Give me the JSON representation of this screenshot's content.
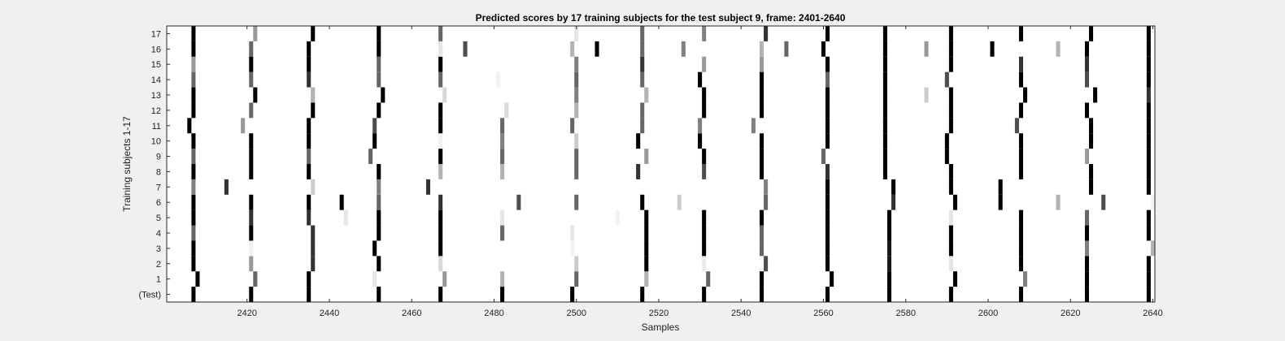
{
  "chart_data": {
    "type": "heatmap",
    "title": "Predicted scores by 17 training subjects for the test subject 9, frame: 2401-2640",
    "xlabel": "Samples",
    "ylabel": "Training subjects 1-17",
    "xlim": [
      2401,
      2640
    ],
    "x_ticks": [
      2420,
      2440,
      2460,
      2480,
      2500,
      2520,
      2540,
      2560,
      2580,
      2600,
      2620,
      2640
    ],
    "y_ticks": [
      "(Test)",
      "1",
      "2",
      "3",
      "4",
      "5",
      "6",
      "7",
      "8",
      "9",
      "10",
      "11",
      "12",
      "13",
      "14",
      "15",
      "16",
      "17"
    ],
    "colormap": "gray (white = 0, black = 1)",
    "background_value": 0,
    "marks_note": "Each row lists nonzero predicted scores as [sample, intensity]; intensity 0-1 (1 = black). Values estimated from the image.",
    "rows": [
      {
        "label": "(Test)",
        "marks": [
          [
            2407,
            1
          ],
          [
            2421,
            1
          ],
          [
            2435,
            1
          ],
          [
            2452,
            1
          ],
          [
            2467,
            1
          ],
          [
            2482,
            1
          ],
          [
            2499,
            1
          ],
          [
            2516,
            1
          ],
          [
            2531,
            1
          ],
          [
            2545,
            1
          ],
          [
            2561,
            1
          ],
          [
            2576,
            1
          ],
          [
            2591,
            1
          ],
          [
            2608,
            1
          ],
          [
            2624,
            1
          ],
          [
            2639,
            1
          ]
        ]
      },
      {
        "label": "1",
        "marks": [
          [
            2408,
            1
          ],
          [
            2422,
            0.6
          ],
          [
            2435,
            1
          ],
          [
            2451,
            0.1
          ],
          [
            2468,
            0.4
          ],
          [
            2482,
            0.3
          ],
          [
            2500,
            0.6
          ],
          [
            2517,
            0.3
          ],
          [
            2532,
            0.6
          ],
          [
            2545,
            1
          ],
          [
            2562,
            1
          ],
          [
            2576,
            1
          ],
          [
            2592,
            1
          ],
          [
            2609,
            0.5
          ],
          [
            2624,
            1
          ],
          [
            2639,
            1
          ]
        ]
      },
      {
        "label": "2",
        "marks": [
          [
            2407,
            1
          ],
          [
            2421,
            0.4
          ],
          [
            2436,
            0.8
          ],
          [
            2452,
            1
          ],
          [
            2467,
            0.15
          ],
          [
            2500,
            0.2
          ],
          [
            2517,
            1
          ],
          [
            2531,
            0.08
          ],
          [
            2546,
            0.7
          ],
          [
            2561,
            1
          ],
          [
            2576,
            0.9
          ],
          [
            2591,
            0.1
          ],
          [
            2608,
            1
          ],
          [
            2624,
            1
          ],
          [
            2639,
            1
          ]
        ]
      },
      {
        "label": "3",
        "marks": [
          [
            2407,
            1
          ],
          [
            2421,
            0.05
          ],
          [
            2436,
            0.8
          ],
          [
            2451,
            1
          ],
          [
            2467,
            1
          ],
          [
            2499,
            0.05
          ],
          [
            2517,
            1
          ],
          [
            2531,
            1
          ],
          [
            2545,
            0.6
          ],
          [
            2561,
            1
          ],
          [
            2576,
            0.9
          ],
          [
            2591,
            1
          ],
          [
            2608,
            1
          ],
          [
            2624,
            0.5
          ],
          [
            2640,
            0.3
          ]
        ]
      },
      {
        "label": "4",
        "marks": [
          [
            2407,
            0.6
          ],
          [
            2421,
            1
          ],
          [
            2436,
            0.8
          ],
          [
            2452,
            1
          ],
          [
            2467,
            1
          ],
          [
            2482,
            0.6
          ],
          [
            2499,
            0.1
          ],
          [
            2517,
            1
          ],
          [
            2531,
            1
          ],
          [
            2545,
            0.6
          ],
          [
            2561,
            1
          ],
          [
            2576,
            1
          ],
          [
            2591,
            1
          ],
          [
            2608,
            1
          ],
          [
            2624,
            1
          ],
          [
            2639,
            1
          ]
        ]
      },
      {
        "label": "5",
        "marks": [
          [
            2407,
            1
          ],
          [
            2421,
            0.8
          ],
          [
            2435,
            0.8
          ],
          [
            2444,
            0.1
          ],
          [
            2452,
            1
          ],
          [
            2467,
            1
          ],
          [
            2482,
            0.1
          ],
          [
            2510,
            0.05
          ],
          [
            2517,
            1
          ],
          [
            2531,
            1
          ],
          [
            2545,
            1
          ],
          [
            2561,
            1
          ],
          [
            2576,
            1
          ],
          [
            2591,
            0.1
          ],
          [
            2608,
            1
          ],
          [
            2624,
            0.6
          ],
          [
            2639,
            1
          ]
        ]
      },
      {
        "label": "6",
        "marks": [
          [
            2407,
            1
          ],
          [
            2421,
            1
          ],
          [
            2435,
            1
          ],
          [
            2443,
            1
          ],
          [
            2452,
            0.6
          ],
          [
            2467,
            0.8
          ],
          [
            2486,
            0.7
          ],
          [
            2500,
            0.6
          ],
          [
            2516,
            1
          ],
          [
            2525,
            0.2
          ],
          [
            2546,
            0.6
          ],
          [
            2561,
            1
          ],
          [
            2577,
            0.8
          ],
          [
            2592,
            1
          ],
          [
            2603,
            1
          ],
          [
            2617,
            0.3
          ],
          [
            2628,
            0.7
          ],
          [
            2640,
            0.05
          ]
        ]
      },
      {
        "label": "7",
        "marks": [
          [
            2407,
            0.5
          ],
          [
            2415,
            0.8
          ],
          [
            2436,
            0.2
          ],
          [
            2452,
            0.5
          ],
          [
            2464,
            0.8
          ],
          [
            2546,
            0.5
          ],
          [
            2561,
            1
          ],
          [
            2577,
            1
          ],
          [
            2591,
            1
          ],
          [
            2603,
            1
          ],
          [
            2625,
            1
          ],
          [
            2639,
            1
          ]
        ]
      },
      {
        "label": "8",
        "marks": [
          [
            2407,
            1
          ],
          [
            2421,
            1
          ],
          [
            2435,
            1
          ],
          [
            2452,
            1
          ],
          [
            2467,
            0.3
          ],
          [
            2482,
            0.3
          ],
          [
            2500,
            0.6
          ],
          [
            2515,
            0.8
          ],
          [
            2531,
            0.7
          ],
          [
            2545,
            1
          ],
          [
            2561,
            0.8
          ],
          [
            2575,
            1
          ],
          [
            2591,
            1
          ],
          [
            2608,
            1
          ],
          [
            2625,
            1
          ],
          [
            2639,
            1
          ]
        ]
      },
      {
        "label": "9",
        "marks": [
          [
            2407,
            0.6
          ],
          [
            2421,
            1
          ],
          [
            2435,
            0.6
          ],
          [
            2450,
            0.6
          ],
          [
            2467,
            1
          ],
          [
            2482,
            0.6
          ],
          [
            2500,
            0.6
          ],
          [
            2517,
            0.4
          ],
          [
            2531,
            1
          ],
          [
            2545,
            1
          ],
          [
            2560,
            0.6
          ],
          [
            2575,
            1
          ],
          [
            2590,
            1
          ],
          [
            2608,
            1
          ],
          [
            2624,
            0.4
          ],
          [
            2639,
            1
          ]
        ]
      },
      {
        "label": "10",
        "marks": [
          [
            2407,
            1
          ],
          [
            2421,
            1
          ],
          [
            2435,
            1
          ],
          [
            2451,
            1
          ],
          [
            2467,
            0.05
          ],
          [
            2482,
            0.5
          ],
          [
            2500,
            0.2
          ],
          [
            2515,
            1
          ],
          [
            2530,
            1
          ],
          [
            2545,
            1
          ],
          [
            2561,
            1
          ],
          [
            2575,
            1
          ],
          [
            2590,
            1
          ],
          [
            2608,
            1
          ],
          [
            2625,
            1
          ],
          [
            2639,
            1
          ]
        ]
      },
      {
        "label": "11",
        "marks": [
          [
            2406,
            1
          ],
          [
            2419,
            0.4
          ],
          [
            2435,
            1
          ],
          [
            2451,
            0.7
          ],
          [
            2467,
            1
          ],
          [
            2482,
            0.6
          ],
          [
            2499,
            0.6
          ],
          [
            2516,
            0.6
          ],
          [
            2530,
            0.5
          ],
          [
            2543,
            0.5
          ],
          [
            2561,
            1
          ],
          [
            2575,
            1
          ],
          [
            2591,
            1
          ],
          [
            2607,
            0.7
          ],
          [
            2625,
            1
          ],
          [
            2639,
            1
          ]
        ]
      },
      {
        "label": "12",
        "marks": [
          [
            2407,
            1
          ],
          [
            2421,
            0.6
          ],
          [
            2436,
            1
          ],
          [
            2452,
            1
          ],
          [
            2467,
            1
          ],
          [
            2483,
            0.15
          ],
          [
            2500,
            0.3
          ],
          [
            2516,
            0.6
          ],
          [
            2531,
            1
          ],
          [
            2545,
            1
          ],
          [
            2561,
            1
          ],
          [
            2575,
            1
          ],
          [
            2591,
            1
          ],
          [
            2608,
            1
          ],
          [
            2624,
            1
          ],
          [
            2639,
            1
          ]
        ]
      },
      {
        "label": "13",
        "marks": [
          [
            2407,
            1
          ],
          [
            2422,
            1
          ],
          [
            2436,
            0.3
          ],
          [
            2453,
            1
          ],
          [
            2468,
            0.15
          ],
          [
            2500,
            0.5
          ],
          [
            2517,
            0.3
          ],
          [
            2531,
            1
          ],
          [
            2545,
            1
          ],
          [
            2561,
            1
          ],
          [
            2575,
            1
          ],
          [
            2585,
            0.2
          ],
          [
            2591,
            1
          ],
          [
            2609,
            1
          ],
          [
            2626,
            1
          ],
          [
            2639,
            0.8
          ]
        ]
      },
      {
        "label": "14",
        "marks": [
          [
            2407,
            0.6
          ],
          [
            2421,
            0.6
          ],
          [
            2435,
            0.8
          ],
          [
            2452,
            0.6
          ],
          [
            2467,
            0.6
          ],
          [
            2481,
            0.05
          ],
          [
            2500,
            0.6
          ],
          [
            2516,
            0.6
          ],
          [
            2530,
            1
          ],
          [
            2545,
            1
          ],
          [
            2561,
            0.6
          ],
          [
            2575,
            1
          ],
          [
            2590,
            0.7
          ],
          [
            2608,
            1
          ],
          [
            2624,
            0.7
          ],
          [
            2639,
            1
          ]
        ]
      },
      {
        "label": "15",
        "marks": [
          [
            2407,
            0.4
          ],
          [
            2421,
            1
          ],
          [
            2435,
            1
          ],
          [
            2452,
            0.6
          ],
          [
            2467,
            1
          ],
          [
            2500,
            0.5
          ],
          [
            2516,
            0.8
          ],
          [
            2531,
            0.4
          ],
          [
            2545,
            0.4
          ],
          [
            2561,
            1
          ],
          [
            2575,
            1
          ],
          [
            2591,
            1
          ],
          [
            2608,
            0.8
          ],
          [
            2624,
            0.8
          ],
          [
            2639,
            1
          ]
        ]
      },
      {
        "label": "16",
        "marks": [
          [
            2407,
            1
          ],
          [
            2421,
            0.6
          ],
          [
            2435,
            1
          ],
          [
            2452,
            1
          ],
          [
            2467,
            0.1
          ],
          [
            2473,
            0.7
          ],
          [
            2499,
            0.3
          ],
          [
            2505,
            1
          ],
          [
            2516,
            0.6
          ],
          [
            2526,
            0.5
          ],
          [
            2545,
            0.3
          ],
          [
            2551,
            0.6
          ],
          [
            2560,
            1
          ],
          [
            2575,
            1
          ],
          [
            2585,
            0.4
          ],
          [
            2591,
            1
          ],
          [
            2601,
            1
          ],
          [
            2617,
            0.3
          ],
          [
            2624,
            1
          ],
          [
            2639,
            1
          ]
        ]
      },
      {
        "label": "17",
        "marks": [
          [
            2407,
            1
          ],
          [
            2422,
            0.4
          ],
          [
            2436,
            1
          ],
          [
            2452,
            1
          ],
          [
            2467,
            0.6
          ],
          [
            2500,
            0.1
          ],
          [
            2516,
            0.6
          ],
          [
            2531,
            0.5
          ],
          [
            2546,
            0.8
          ],
          [
            2561,
            1
          ],
          [
            2575,
            1
          ],
          [
            2591,
            1
          ],
          [
            2608,
            1
          ],
          [
            2625,
            1
          ],
          [
            2639,
            1
          ]
        ]
      }
    ]
  }
}
